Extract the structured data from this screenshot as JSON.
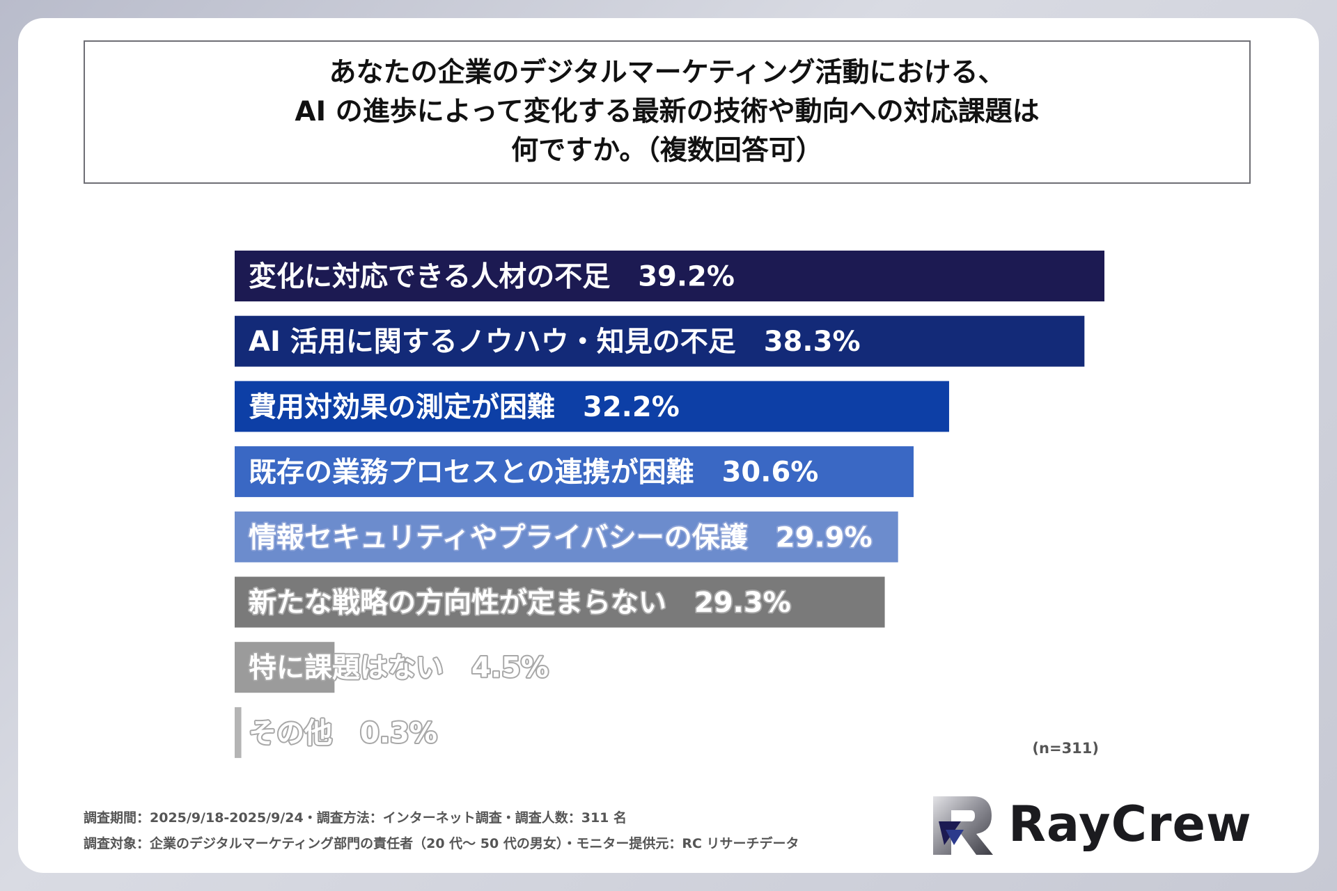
{
  "title": "あなたの企業のデジタルマーケティング活動における、\nAI の進歩によって変化する最新の技術や動向への対応課題は\n何ですか。（複数回答可）",
  "chart_data": {
    "type": "bar",
    "orientation": "horizontal",
    "categories": [
      "変化に対応できる人材の不足",
      "AI 活用に関するノウハウ・知見の不足",
      "費用対効果の測定が困難",
      "既存の業務プロセスとの連携が困難",
      "情報セキュリティやプライバシーの保護",
      "新たな戦略の方向性が定まらない",
      "特に課題はない",
      "その他"
    ],
    "values": [
      39.2,
      38.3,
      32.2,
      30.6,
      29.9,
      29.3,
      4.5,
      0.3
    ],
    "value_labels": [
      "39.2%",
      "38.3%",
      "32.2%",
      "30.6%",
      "29.9%",
      "29.3%",
      "4.5%",
      "0.3%"
    ],
    "colors": [
      "#1c1a52",
      "#132a78",
      "#0d3fa6",
      "#3a68c4",
      "#6c8ccd",
      "#7a7a7a",
      "#9b9b9b",
      "#b4b4b4"
    ],
    "label_outline": "#8ea4d8",
    "grid": false,
    "legend": "none"
  },
  "n_note": "(n=311)",
  "footer": {
    "line1": "調査期間：2025/9/18-2025/9/24・調査方法：インターネット調査・調査人数：311 名",
    "line2": "調査対象：企業のデジタルマーケティング部門の責任者（20 代～ 50 代の男女）・モニター提供元：RC リサーチデータ"
  },
  "logo": {
    "name": "RayCrew",
    "icon": "raycrew-r-logo-icon"
  }
}
